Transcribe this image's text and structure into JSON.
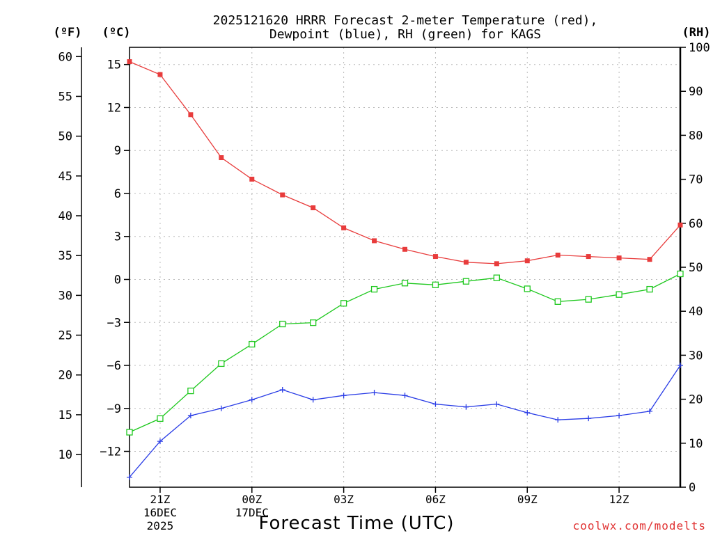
{
  "chart_data": {
    "type": "line",
    "title_line1": "2025121620 HRRR Forecast 2-meter Temperature (red),",
    "title_line2": "Dewpoint (blue), RH (green) for KAGS",
    "xlabel": "Forecast Time (UTC)",
    "credit": "coolwx.com/modelts",
    "units": {
      "fahrenheit": "(ºF)",
      "celsius": "(ºC)",
      "rh": "(RH)"
    },
    "x_hours": [
      0,
      1,
      2,
      3,
      4,
      5,
      6,
      7,
      8,
      9,
      10,
      11,
      12,
      13,
      14,
      15,
      16,
      17,
      18
    ],
    "x_ticks": [
      {
        "hour": 1,
        "label": "21Z"
      },
      {
        "hour": 4,
        "label": "00Z"
      },
      {
        "hour": 7,
        "label": "03Z"
      },
      {
        "hour": 10,
        "label": "06Z"
      },
      {
        "hour": 13,
        "label": "09Z"
      },
      {
        "hour": 16,
        "label": "12Z"
      }
    ],
    "date_labels": [
      {
        "hour": 1,
        "line1": "16DEC",
        "line2": "2025"
      },
      {
        "hour": 4,
        "line1": "17DEC",
        "line2": ""
      }
    ],
    "celsius_axis": {
      "min": -14.5,
      "max": 16.2,
      "ticks": [
        15,
        12,
        9,
        6,
        3,
        0,
        -3,
        -6,
        -9,
        -12
      ]
    },
    "fahrenheit_ticks": [
      60,
      55,
      50,
      45,
      40,
      35,
      30,
      25,
      20,
      15,
      10
    ],
    "rh_axis": {
      "min": 0,
      "max": 100,
      "ticks": [
        100,
        90,
        80,
        70,
        60,
        50,
        40,
        30,
        20,
        10,
        0
      ]
    },
    "series": [
      {
        "name": "2-meter Temperature",
        "unit": "C",
        "color": "#e83c3c",
        "marker": "filled-square",
        "values": [
          15.2,
          14.3,
          11.5,
          8.5,
          7.0,
          5.9,
          5.0,
          3.6,
          2.7,
          2.1,
          1.6,
          1.2,
          1.1,
          1.3,
          1.7,
          1.6,
          1.5,
          1.4,
          3.8
        ]
      },
      {
        "name": "Dewpoint",
        "unit": "C",
        "color": "#2a3de6",
        "marker": "plus",
        "values": [
          -13.8,
          -11.3,
          -9.5,
          -9.0,
          -8.4,
          -7.7,
          -8.4,
          -8.1,
          -7.9,
          -8.1,
          -8.7,
          -8.9,
          -8.7,
          -9.3,
          -9.8,
          -9.7,
          -9.5,
          -9.2,
          -6.0
        ]
      },
      {
        "name": "Relative Humidity",
        "unit": "%",
        "color": "#1ec81e",
        "marker": "open-square",
        "values": [
          12.5,
          15.6,
          21.9,
          28.1,
          32.5,
          37.1,
          37.4,
          41.8,
          45.0,
          46.4,
          46.0,
          46.8,
          47.6,
          45.1,
          42.2,
          42.7,
          43.8,
          45.0,
          48.5
        ]
      }
    ]
  }
}
